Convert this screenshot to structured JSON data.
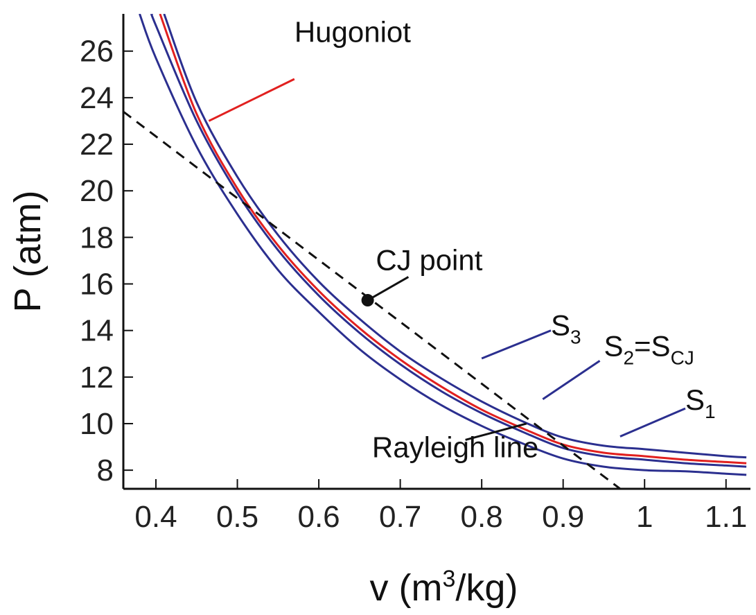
{
  "chart_data": {
    "type": "line",
    "title": "",
    "xlabel": "v (m3/kg)",
    "xlabel_parts": {
      "pre": "v (m",
      "sup": "3",
      "post": "/kg)"
    },
    "ylabel": "P (atm)",
    "xlim": [
      0.36,
      1.13
    ],
    "ylim": [
      7.2,
      27.6
    ],
    "xticks": [
      0.4,
      0.5,
      0.6,
      0.7,
      0.8,
      0.9,
      1.0,
      1.1
    ],
    "xtick_labels": [
      "0.4",
      "0.5",
      "0.6",
      "0.7",
      "0.8",
      "0.9",
      "1",
      "1.1"
    ],
    "yticks": [
      8,
      10,
      12,
      14,
      16,
      18,
      20,
      22,
      24,
      26
    ],
    "ytick_labels": [
      "8",
      "10",
      "12",
      "14",
      "16",
      "18",
      "20",
      "22",
      "24",
      "26"
    ],
    "grid": false,
    "series": [
      {
        "id": "s1",
        "color": "#2b2f8f",
        "style": "solid",
        "x": [
          0.38,
          0.4,
          0.45,
          0.5,
          0.55,
          0.6,
          0.65,
          0.7,
          0.75,
          0.8,
          0.85,
          0.9,
          0.95,
          1.0,
          1.05,
          1.1,
          1.125
        ],
        "y": [
          27.6,
          25.7,
          21.9,
          19.0,
          16.6,
          14.8,
          13.2,
          11.9,
          10.8,
          9.9,
          9.15,
          8.5,
          8.15,
          8.0,
          7.95,
          7.85,
          7.8
        ]
      },
      {
        "id": "s2",
        "color": "#2b2f8f",
        "style": "solid",
        "x": [
          0.395,
          0.4,
          0.45,
          0.5,
          0.55,
          0.6,
          0.65,
          0.7,
          0.75,
          0.8,
          0.85,
          0.9,
          0.95,
          1.0,
          1.05,
          1.1,
          1.125
        ],
        "y": [
          27.6,
          27.1,
          23.0,
          19.9,
          17.45,
          15.5,
          13.9,
          12.55,
          11.4,
          10.45,
          9.65,
          8.95,
          8.6,
          8.45,
          8.3,
          8.2,
          8.15
        ]
      },
      {
        "id": "hugoniot",
        "color": "#e1201f",
        "style": "solid",
        "x": [
          0.405,
          0.45,
          0.5,
          0.55,
          0.6,
          0.65,
          0.7,
          0.75,
          0.8,
          0.85,
          0.9,
          0.95,
          1.0,
          1.05,
          1.1,
          1.125
        ],
        "y": [
          27.6,
          23.3,
          20.1,
          17.65,
          15.7,
          14.1,
          12.75,
          11.6,
          10.6,
          9.8,
          9.1,
          8.75,
          8.6,
          8.45,
          8.35,
          8.3
        ]
      },
      {
        "id": "s3",
        "color": "#2b2f8f",
        "style": "solid",
        "x": [
          0.41,
          0.45,
          0.5,
          0.55,
          0.6,
          0.65,
          0.7,
          0.75,
          0.8,
          0.85,
          0.9,
          0.95,
          1.0,
          1.05,
          1.1,
          1.125
        ],
        "y": [
          27.6,
          23.8,
          20.6,
          18.1,
          16.1,
          14.5,
          13.1,
          11.95,
          10.95,
          10.1,
          9.4,
          9.05,
          8.9,
          8.75,
          8.6,
          8.55
        ]
      },
      {
        "id": "rayleigh",
        "color": "#111111",
        "style": "dashed",
        "x": [
          0.36,
          0.97
        ],
        "y": [
          23.4,
          7.2
        ]
      }
    ],
    "points": [
      {
        "name": "CJ point",
        "x": 0.66,
        "y": 15.3,
        "color": "#111111"
      }
    ],
    "annotations": [
      {
        "id": "hugoniot",
        "label": "Hugoniot",
        "main": "Hugoniot",
        "x": 0.57,
        "y": 26.4,
        "from": [
          0.57,
          24.8
        ],
        "to": [
          0.465,
          23.0
        ],
        "color": "#e1201f"
      },
      {
        "id": "cj",
        "label": "CJ point",
        "main": "CJ point",
        "x": 0.67,
        "y": 16.6,
        "from": [
          0.71,
          16.3
        ],
        "to": [
          0.66,
          15.3
        ],
        "color": "#111111"
      },
      {
        "id": "s3",
        "label": "S3",
        "main": "S",
        "sub": "3",
        "x": 0.885,
        "y": 13.8,
        "from": [
          0.885,
          14.0
        ],
        "to": [
          0.8,
          12.8
        ],
        "color": "#2b2f8f"
      },
      {
        "id": "s2",
        "label": "S2=SCJ",
        "main": "S",
        "sub": "2",
        "mid": "=S",
        "sub2": "CJ",
        "x": 0.95,
        "y": 12.9,
        "from": [
          0.945,
          12.7
        ],
        "to": [
          0.875,
          11.05
        ],
        "color": "#2b2f8f"
      },
      {
        "id": "s1",
        "label": "S1",
        "main": "S",
        "sub": "1",
        "x": 1.05,
        "y": 10.6,
        "from": [
          1.05,
          10.65
        ],
        "to": [
          0.97,
          9.45
        ],
        "color": "#2b2f8f"
      },
      {
        "id": "rayleigh",
        "label": "Rayleigh line",
        "main": "Rayleigh line",
        "x": 0.87,
        "y": 8.55,
        "from": [
          0.78,
          9.3
        ],
        "to": [
          0.855,
          10.0
        ],
        "color": "#111111"
      }
    ]
  }
}
